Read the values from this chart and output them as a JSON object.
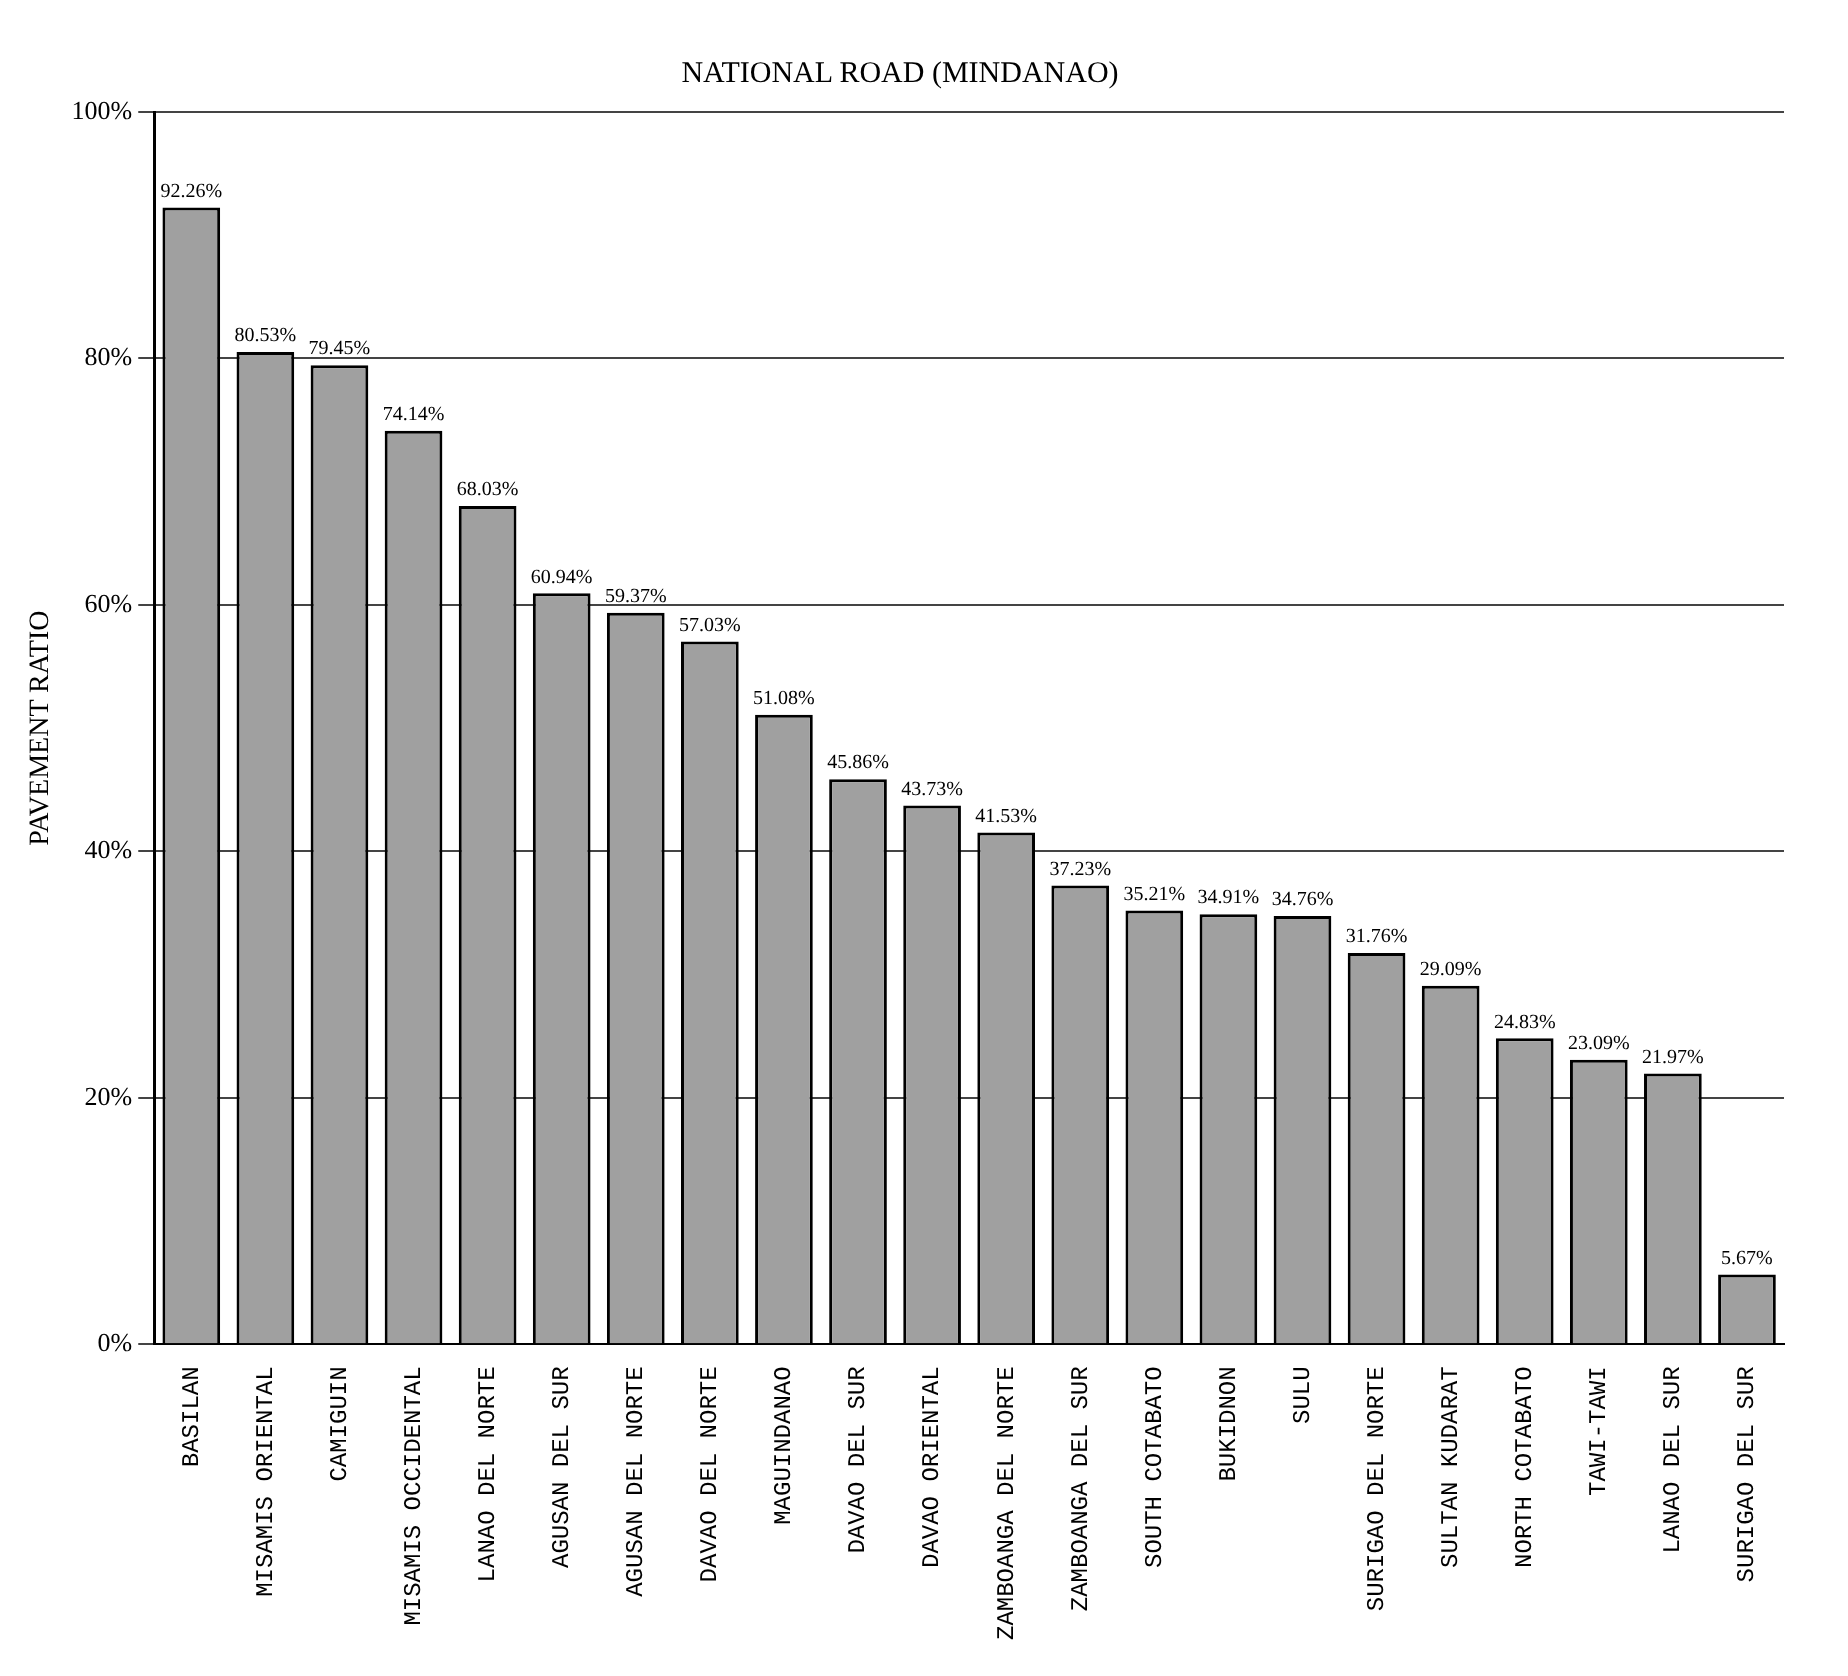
{
  "chart_data": {
    "type": "bar",
    "title": "NATIONAL ROAD (MINDANAO)",
    "ylabel": "PAVEMENT RATIO",
    "categories": [
      "BASILAN",
      "MISAMIS ORIENTAL",
      "CAMIGUIN",
      "MISAMIS OCCIDENTAL",
      "LANAO DEL NORTE",
      "AGUSAN DEL SUR",
      "AGUSAN DEL NORTE",
      "DAVAO DEL NORTE",
      "MAGUINDANAO",
      "DAVAO DEL SUR",
      "DAVAO ORIENTAL",
      "ZAMBOANGA DEL NORTE",
      "ZAMBOANGA DEL SUR",
      "SOUTH COTABATO",
      "BUKIDNON",
      "SULU",
      "SURIGAO DEL NORTE",
      "SULTAN KUDARAT",
      "NORTH COTABATO",
      "TAWI-TAWI",
      "LANAO DEL SUR",
      "SURIGAO DEL SUR"
    ],
    "values": [
      92.26,
      80.53,
      79.45,
      74.14,
      68.03,
      60.94,
      59.37,
      57.03,
      51.08,
      45.86,
      43.73,
      41.53,
      37.23,
      35.21,
      34.91,
      34.76,
      31.76,
      29.09,
      24.83,
      23.09,
      21.97,
      5.67
    ],
    "value_labels": [
      "92.26%",
      "80.53%",
      "79.45%",
      "74.14%",
      "68.03%",
      "60.94%",
      "59.37%",
      "57.03%",
      "51.08%",
      "45.86%",
      "43.73%",
      "41.53%",
      "37.23%",
      "35.21%",
      "34.91%",
      "34.76%",
      "31.76%",
      "29.09%",
      "24.83%",
      "23.09%",
      "21.97%",
      "5.67%"
    ],
    "color": "#a0a0a0",
    "ylim": [
      0,
      100
    ],
    "yticks": [
      {
        "value": 0,
        "label": "0%"
      },
      {
        "value": 20,
        "label": "20%"
      },
      {
        "value": 40,
        "label": "40%"
      },
      {
        "value": 60,
        "label": "60%"
      },
      {
        "value": 80,
        "label": "80%"
      },
      {
        "value": 100,
        "label": "100%"
      }
    ],
    "grid": "y"
  }
}
